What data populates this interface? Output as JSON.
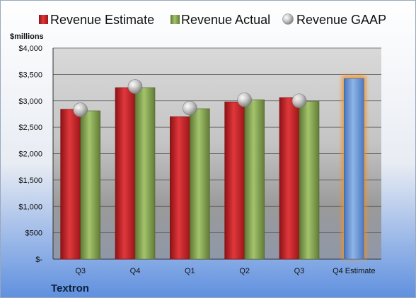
{
  "chart_data": {
    "type": "bar",
    "categories": [
      "Q3",
      "Q4",
      "Q1",
      "Q2",
      "Q3",
      "Q4 Estimate"
    ],
    "series": [
      {
        "name": "Revenue Estimate",
        "kind": "bar",
        "color": "#c8262a",
        "values": [
          2840,
          3250,
          2700,
          2980,
          3060,
          3420
        ]
      },
      {
        "name": "Revenue Actual",
        "kind": "bar",
        "color": "#8aa756",
        "values": [
          2810,
          3250,
          2850,
          3020,
          2990,
          null
        ]
      },
      {
        "name": "Revenue GAAP",
        "kind": "marker",
        "color": "#b8b8b8",
        "values": [
          2830,
          3270,
          2860,
          3020,
          3000,
          null
        ]
      }
    ],
    "estimate_bar_color": "#6f9ad6",
    "ylabel": "$millions",
    "ylim": [
      0,
      4000
    ],
    "yticks": [
      0,
      500,
      1000,
      1500,
      2000,
      2500,
      3000,
      3500,
      4000
    ],
    "ytick_labels": [
      "$-",
      "$500",
      "$1,000",
      "$1,500",
      "$2,000",
      "$2,500",
      "$3,000",
      "$3,500",
      "$4,000"
    ],
    "legend_position": "top",
    "grid": true
  },
  "company": "Textron"
}
